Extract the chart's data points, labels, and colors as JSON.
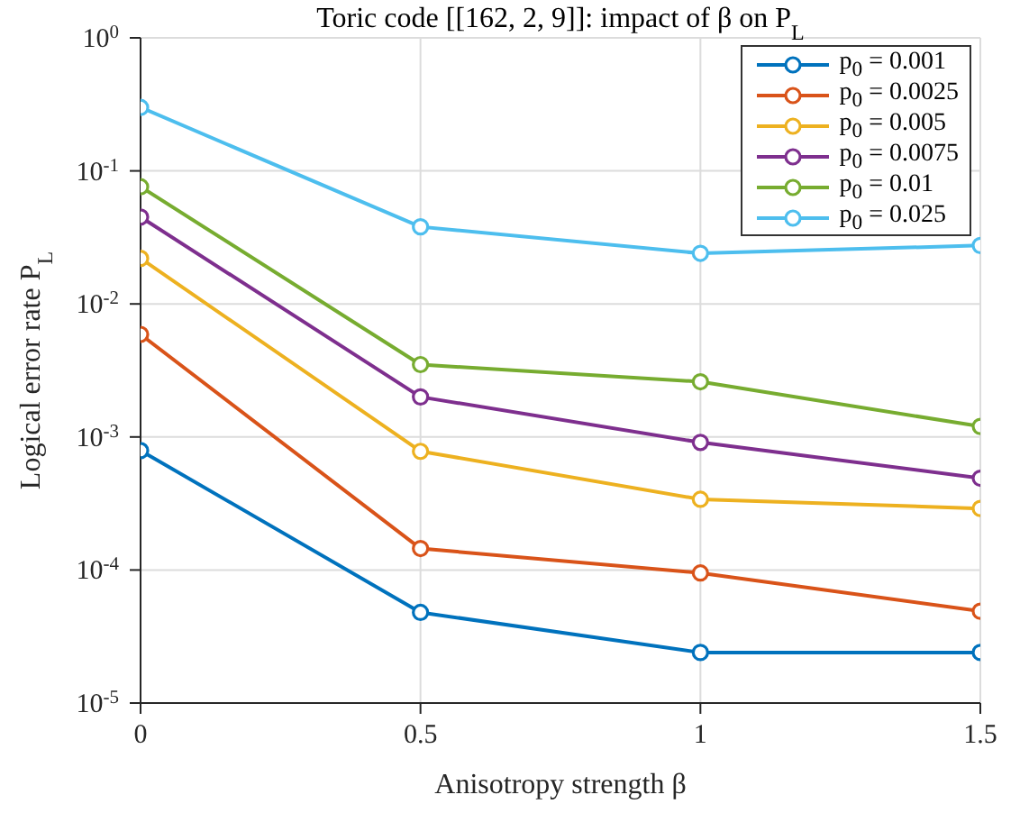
{
  "chart_data": {
    "type": "line",
    "title": "Toric code [[162, 2, 9]]: impact of β on P$_{L}$",
    "xlabel": "Anisotropy strength β",
    "ylabel": "Logical error rate P$_{L}$",
    "x": [
      0,
      0.5,
      1,
      1.5
    ],
    "series": [
      {
        "name": "p$_{0}$ = 0.001",
        "color": "#0072bd",
        "values": [
          0.00079,
          4.8e-05,
          2.4e-05,
          2.4e-05
        ]
      },
      {
        "name": "p$_{0}$ = 0.0025",
        "color": "#d95319",
        "values": [
          0.0059,
          0.000145,
          9.5e-05,
          4.9e-05
        ]
      },
      {
        "name": "p$_{0}$ = 0.005",
        "color": "#edb120",
        "values": [
          0.022,
          0.00078,
          0.00034,
          0.00029
        ]
      },
      {
        "name": "p$_{0}$ = 0.0075",
        "color": "#7e2f8e",
        "values": [
          0.045,
          0.002,
          0.00091,
          0.00049
        ]
      },
      {
        "name": "p$_{0}$ = 0.01",
        "color": "#77ac30",
        "values": [
          0.076,
          0.0035,
          0.0026,
          0.0012
        ]
      },
      {
        "name": "p$_{0}$ = 0.025",
        "color": "#4dbeee",
        "values": [
          0.3,
          0.038,
          0.024,
          0.0275
        ]
      }
    ],
    "xlim": [
      0,
      1.5
    ],
    "xticks": [
      0,
      0.5,
      1,
      1.5
    ],
    "ylim": [
      1e-05,
      1
    ],
    "yticks": [
      {
        "value": 1e-05,
        "label": "10$^{-5}$"
      },
      {
        "value": 0.0001,
        "label": "10$^{-4}$"
      },
      {
        "value": 0.001,
        "label": "10$^{-3}$"
      },
      {
        "value": 0.01,
        "label": "10$^{-2}$"
      },
      {
        "value": 0.1,
        "label": "10$^{-1}$"
      },
      {
        "value": 1,
        "label": "10$^{0}$"
      }
    ],
    "log": "y",
    "grid": true,
    "legend": "top right",
    "marker": "circle",
    "line_style": "solid"
  }
}
